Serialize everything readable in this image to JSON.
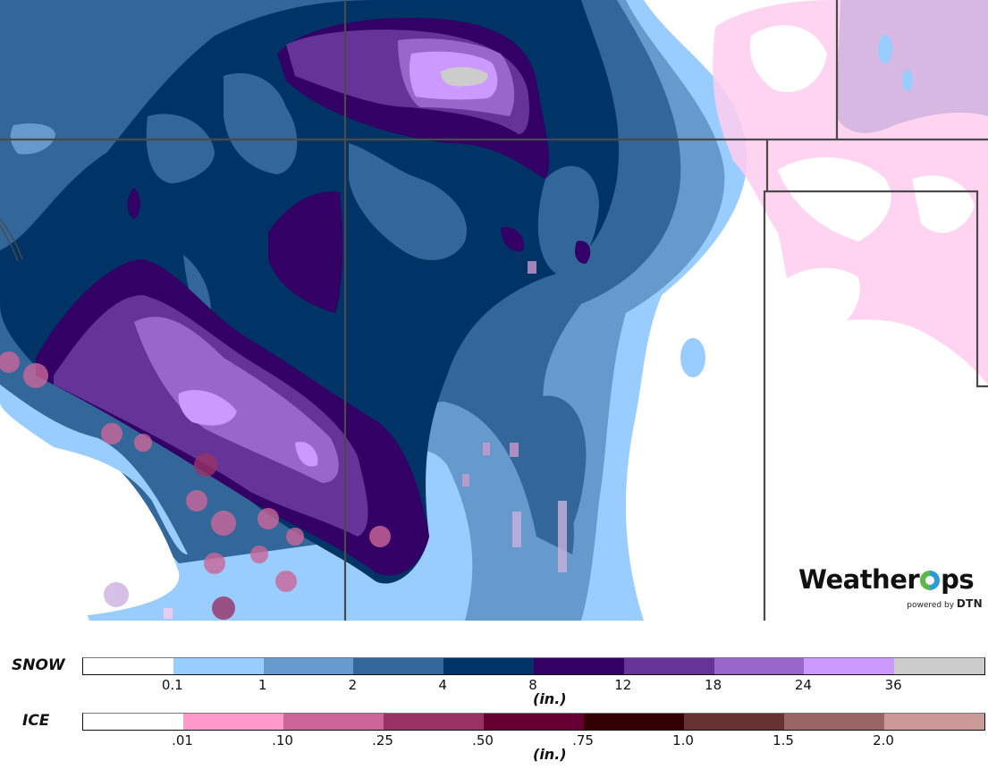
{
  "map": {
    "description": "Forecast accumulated snow and ice map",
    "state_borders_color": "#4a4a4a",
    "logo": {
      "brand_left": "Weather",
      "brand_right": "ps",
      "tagline": "powered by",
      "tagline_brand": "DTN",
      "icon": "weatherops-o-ring-icon"
    }
  },
  "legend": {
    "snow": {
      "label": "SNOW",
      "units": "(in.)",
      "colors": [
        "#ffffff",
        "#99ccff",
        "#6699cc",
        "#336699",
        "#003366",
        "#330066",
        "#663399",
        "#9966cc",
        "#cc99ff",
        "#cccccc"
      ],
      "ticks": [
        "0.1",
        "1",
        "2",
        "4",
        "8",
        "12",
        "18",
        "24",
        "36"
      ]
    },
    "ice": {
      "label": "ICE",
      "units": "(in.)",
      "colors": [
        "#ffffff",
        "#ff99cc",
        "#cc6699",
        "#993366",
        "#660033",
        "#330000",
        "#663333",
        "#996666",
        "#cc9999"
      ],
      "ticks": [
        ".01",
        ".10",
        ".25",
        ".50",
        ".75",
        "1.0",
        "1.5",
        "2.0"
      ]
    }
  }
}
